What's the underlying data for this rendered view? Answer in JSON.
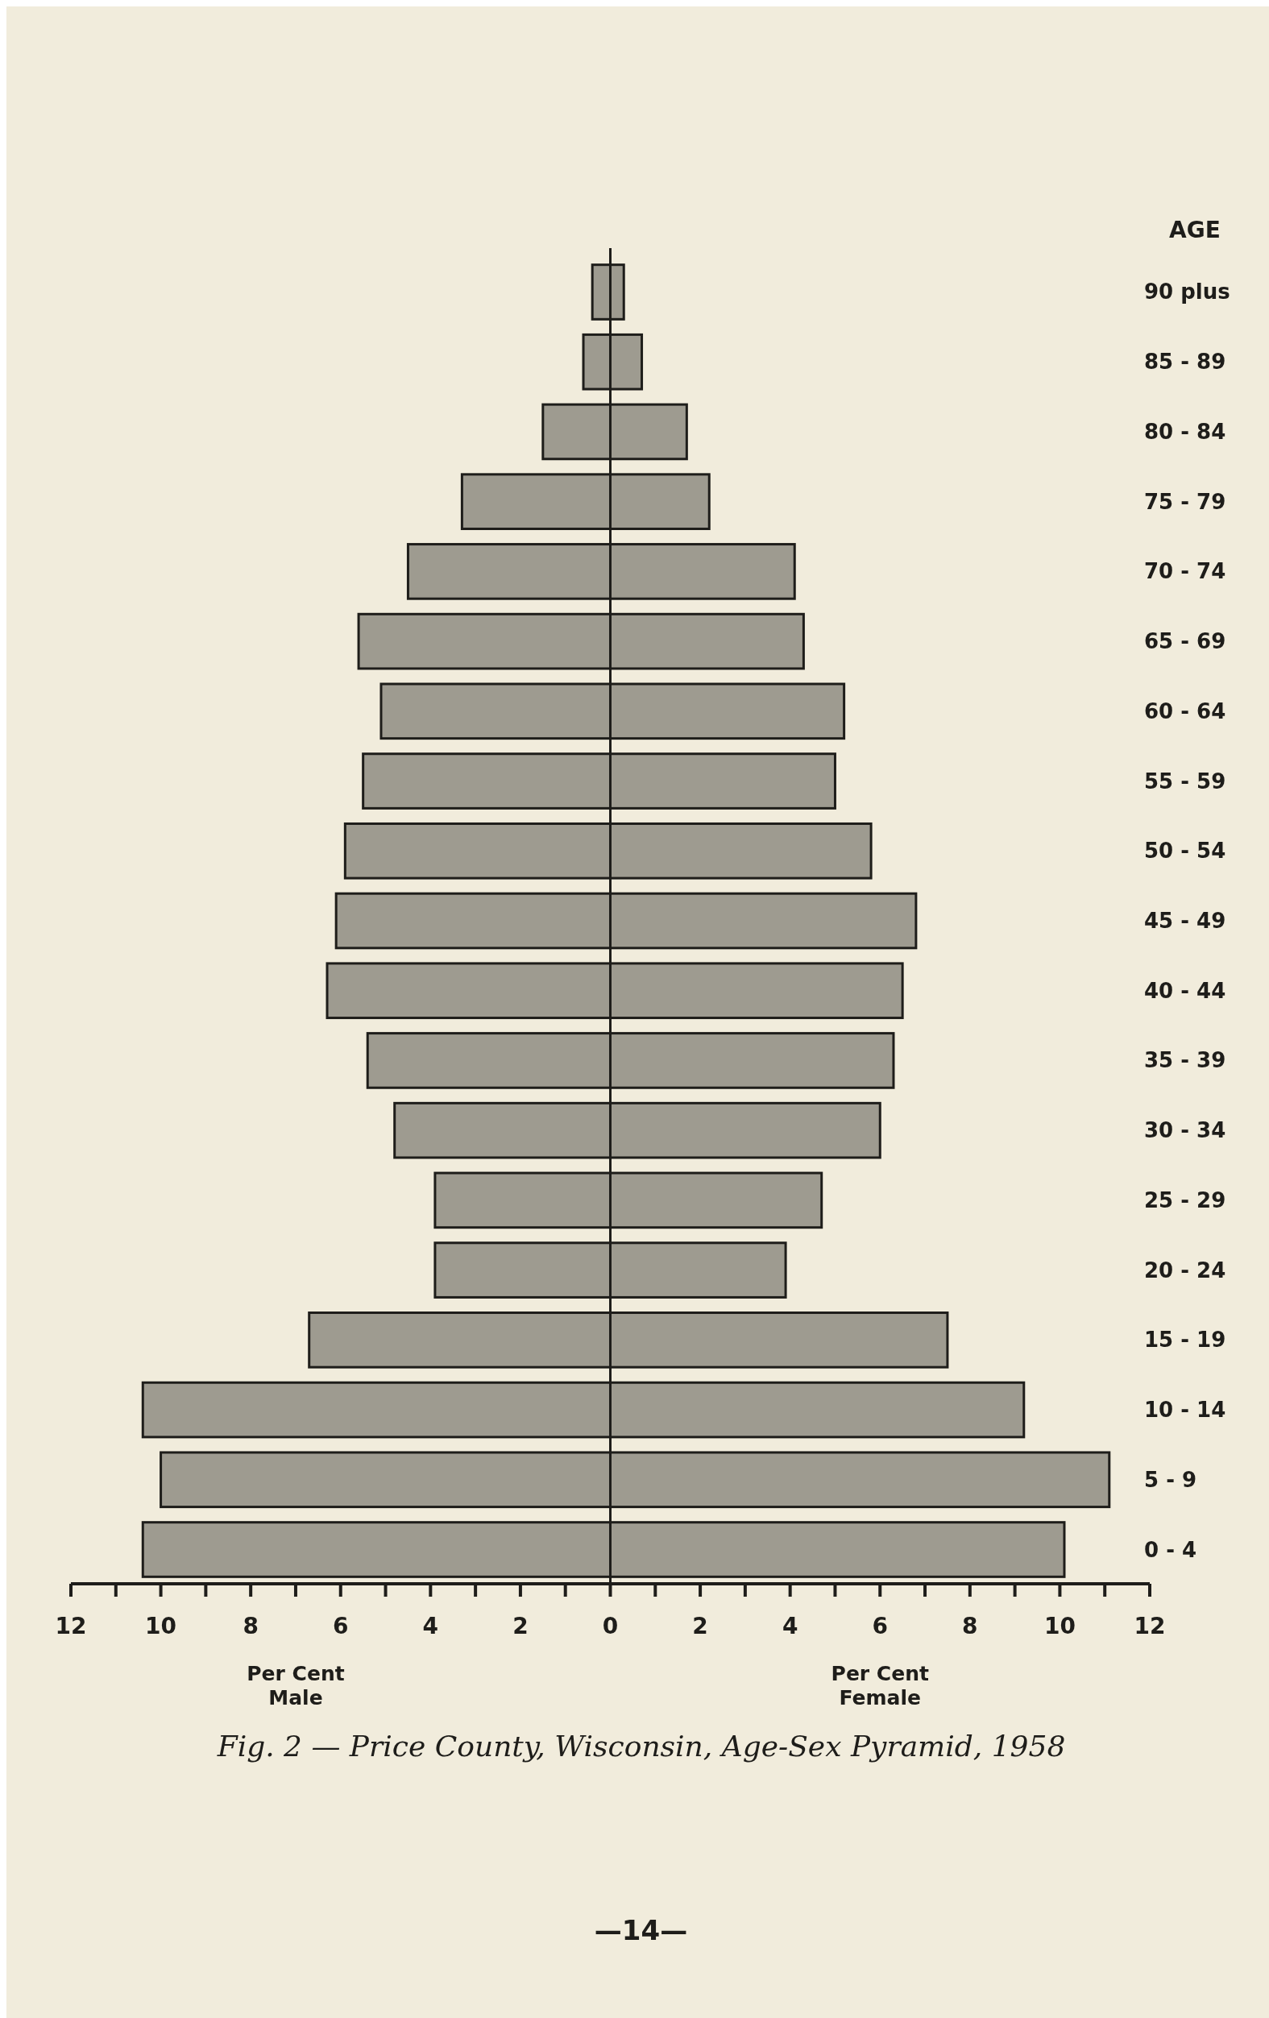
{
  "chart_data": {
    "type": "bar",
    "orientation": "horizontal",
    "title": "Fig. 2 — Price County, Wisconsin, Age-Sex Pyramid, 1958",
    "ylabel": "AGE",
    "categories": [
      "90 plus",
      "85 - 89",
      "80 - 84",
      "75 - 79",
      "70 - 74",
      "65 - 69",
      "60 - 64",
      "55 - 59",
      "50 - 54",
      "45 - 49",
      "40 - 44",
      "35 - 39",
      "30 - 34",
      "25 - 29",
      "20 - 24",
      "15 - 19",
      "10 - 14",
      "5 - 9",
      "0 - 4"
    ],
    "series": [
      {
        "color": "#8f8d82",
        "values": [
          -0.4,
          -0.6,
          -1.5,
          -3.3,
          -4.5,
          -5.6,
          -5.1,
          -5.5,
          -5.9,
          -6.1,
          -6.3,
          -5.4,
          -4.8,
          -3.9,
          -3.9,
          -6.7,
          -10.4,
          -10.0,
          -10.4
        ]
      },
      {
        "color": "#8f8d82",
        "values": [
          0.3,
          0.7,
          1.7,
          2.2,
          4.1,
          4.3,
          5.2,
          5.0,
          5.8,
          6.8,
          6.5,
          6.3,
          6.0,
          4.7,
          3.9,
          7.5,
          9.2,
          11.1,
          10.1
        ]
      }
    ],
    "xlim": [
      -12,
      12
    ],
    "xticks": [
      {
        "value": -12,
        "label": "12"
      },
      {
        "value": -11,
        "label": null
      },
      {
        "value": -10,
        "label": "10"
      },
      {
        "value": -9,
        "label": null
      },
      {
        "value": -8,
        "label": "8"
      },
      {
        "value": -7,
        "label": null
      },
      {
        "value": -6,
        "label": "6"
      },
      {
        "value": -5,
        "label": null
      },
      {
        "value": -4,
        "label": "4"
      },
      {
        "value": -3,
        "label": null
      },
      {
        "value": -2,
        "label": "2"
      },
      {
        "value": -1,
        "label": null
      },
      0,
      {
        "value": 1,
        "label": null
      },
      2,
      {
        "value": 3,
        "label": null
      },
      4,
      {
        "value": 5,
        "label": null
      },
      6,
      {
        "value": 7,
        "label": null
      },
      8,
      {
        "value": 9,
        "label": null
      },
      10,
      {
        "value": 11,
        "label": null
      },
      12
    ],
    "annotations": [
      "Per Cent\nMale",
      "Per Cent\nFemale",
      "—14—"
    ]
  }
}
